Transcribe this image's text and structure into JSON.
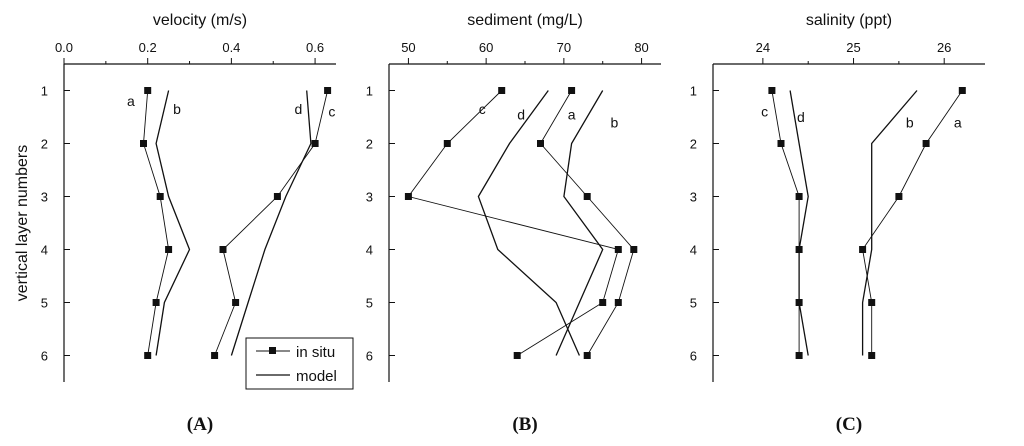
{
  "figure": {
    "ylabel": "vertical layer numbers",
    "legend": {
      "in_situ": "in situ",
      "model": "model"
    }
  },
  "chart_data": [
    {
      "type": "line",
      "panel": "(A)",
      "title": "velocity (m/s)",
      "xlim": [
        0.0,
        0.65
      ],
      "xticks": [
        0.0,
        0.2,
        0.4,
        0.6
      ],
      "xtick_labels": [
        "0.0",
        "0.2",
        "0.4",
        "0.6"
      ],
      "ylim": [
        0.5,
        6.5
      ],
      "y_reversed": true,
      "yticks": [
        1,
        2,
        3,
        4,
        5,
        6
      ],
      "series": [
        {
          "name": "a",
          "kind": "in situ",
          "x": [
            0.2,
            0.19,
            0.23,
            0.25,
            0.22,
            0.2
          ],
          "y": [
            1,
            2,
            3,
            4,
            5,
            6
          ],
          "label_at": [
            0.16,
            1.2
          ]
        },
        {
          "name": "b",
          "kind": "model",
          "x": [
            0.25,
            0.22,
            0.25,
            0.3,
            0.24,
            0.22
          ],
          "y": [
            1,
            2,
            3,
            4,
            5,
            6
          ],
          "label_at": [
            0.27,
            1.35
          ]
        },
        {
          "name": "c",
          "kind": "in situ",
          "x": [
            0.63,
            0.6,
            0.51,
            0.38,
            0.41,
            0.36
          ],
          "y": [
            1,
            2,
            3,
            4,
            5,
            6
          ],
          "label_at": [
            0.64,
            1.4
          ]
        },
        {
          "name": "d",
          "kind": "model",
          "x": [
            0.58,
            0.59,
            0.53,
            0.48,
            0.44,
            0.4
          ],
          "y": [
            1,
            2,
            3,
            4,
            5,
            6
          ],
          "label_at": [
            0.56,
            1.35
          ]
        }
      ]
    },
    {
      "type": "line",
      "panel": "(B)",
      "title": "sediment (mg/L)",
      "xlim": [
        47.5,
        82.5
      ],
      "xticks": [
        50,
        60,
        70,
        80
      ],
      "xtick_labels": [
        "50",
        "60",
        "70",
        "80"
      ],
      "ylim": [
        0.5,
        6.5
      ],
      "y_reversed": true,
      "yticks": [
        1,
        2,
        3,
        4,
        5,
        6
      ],
      "series": [
        {
          "name": "a",
          "kind": "in situ",
          "x": [
            71,
            67,
            73,
            79,
            77,
            73
          ],
          "y": [
            1,
            2,
            3,
            4,
            5,
            6
          ],
          "label_at": [
            71,
            1.45
          ]
        },
        {
          "name": "b",
          "kind": "model",
          "x": [
            75,
            71,
            70,
            75,
            72,
            69
          ],
          "y": [
            1,
            2,
            3,
            4,
            5,
            6
          ],
          "label_at": [
            76.5,
            1.6
          ]
        },
        {
          "name": "c",
          "kind": "in situ",
          "x": [
            62,
            55,
            50,
            77,
            75,
            64
          ],
          "y": [
            1,
            2,
            3,
            4,
            5,
            6
          ],
          "label_at": [
            59.5,
            1.35
          ]
        },
        {
          "name": "d",
          "kind": "model",
          "x": [
            68,
            63,
            59,
            61.5,
            69,
            72
          ],
          "y": [
            1,
            2,
            3,
            4,
            5,
            6
          ],
          "label_at": [
            64.5,
            1.45
          ]
        }
      ]
    },
    {
      "type": "line",
      "panel": "(C)",
      "title": "salinity (ppt)",
      "xlim": [
        23.45,
        26.45
      ],
      "xticks": [
        24,
        25,
        26
      ],
      "xtick_labels": [
        "24",
        "25",
        "26"
      ],
      "ylim": [
        0.5,
        6.5
      ],
      "y_reversed": true,
      "yticks": [
        1,
        2,
        3,
        4,
        5,
        6
      ],
      "series": [
        {
          "name": "a",
          "kind": "in situ",
          "x": [
            26.2,
            25.8,
            25.5,
            25.1,
            25.2,
            25.2
          ],
          "y": [
            1,
            2,
            3,
            4,
            5,
            6
          ],
          "label_at": [
            26.15,
            1.6
          ]
        },
        {
          "name": "b",
          "kind": "model",
          "x": [
            25.7,
            25.2,
            25.2,
            25.2,
            25.1,
            25.1
          ],
          "y": [
            1,
            2,
            3,
            4,
            5,
            6
          ],
          "label_at": [
            25.62,
            1.6
          ]
        },
        {
          "name": "c",
          "kind": "in situ",
          "x": [
            24.1,
            24.2,
            24.4,
            24.4,
            24.4,
            24.4
          ],
          "y": [
            1,
            2,
            3,
            4,
            5,
            6
          ],
          "label_at": [
            24.02,
            1.4
          ]
        },
        {
          "name": "d",
          "kind": "model",
          "x": [
            24.3,
            24.4,
            24.5,
            24.4,
            24.4,
            24.5
          ],
          "y": [
            1,
            2,
            3,
            4,
            5,
            6
          ],
          "label_at": [
            24.42,
            1.5
          ]
        }
      ]
    }
  ]
}
